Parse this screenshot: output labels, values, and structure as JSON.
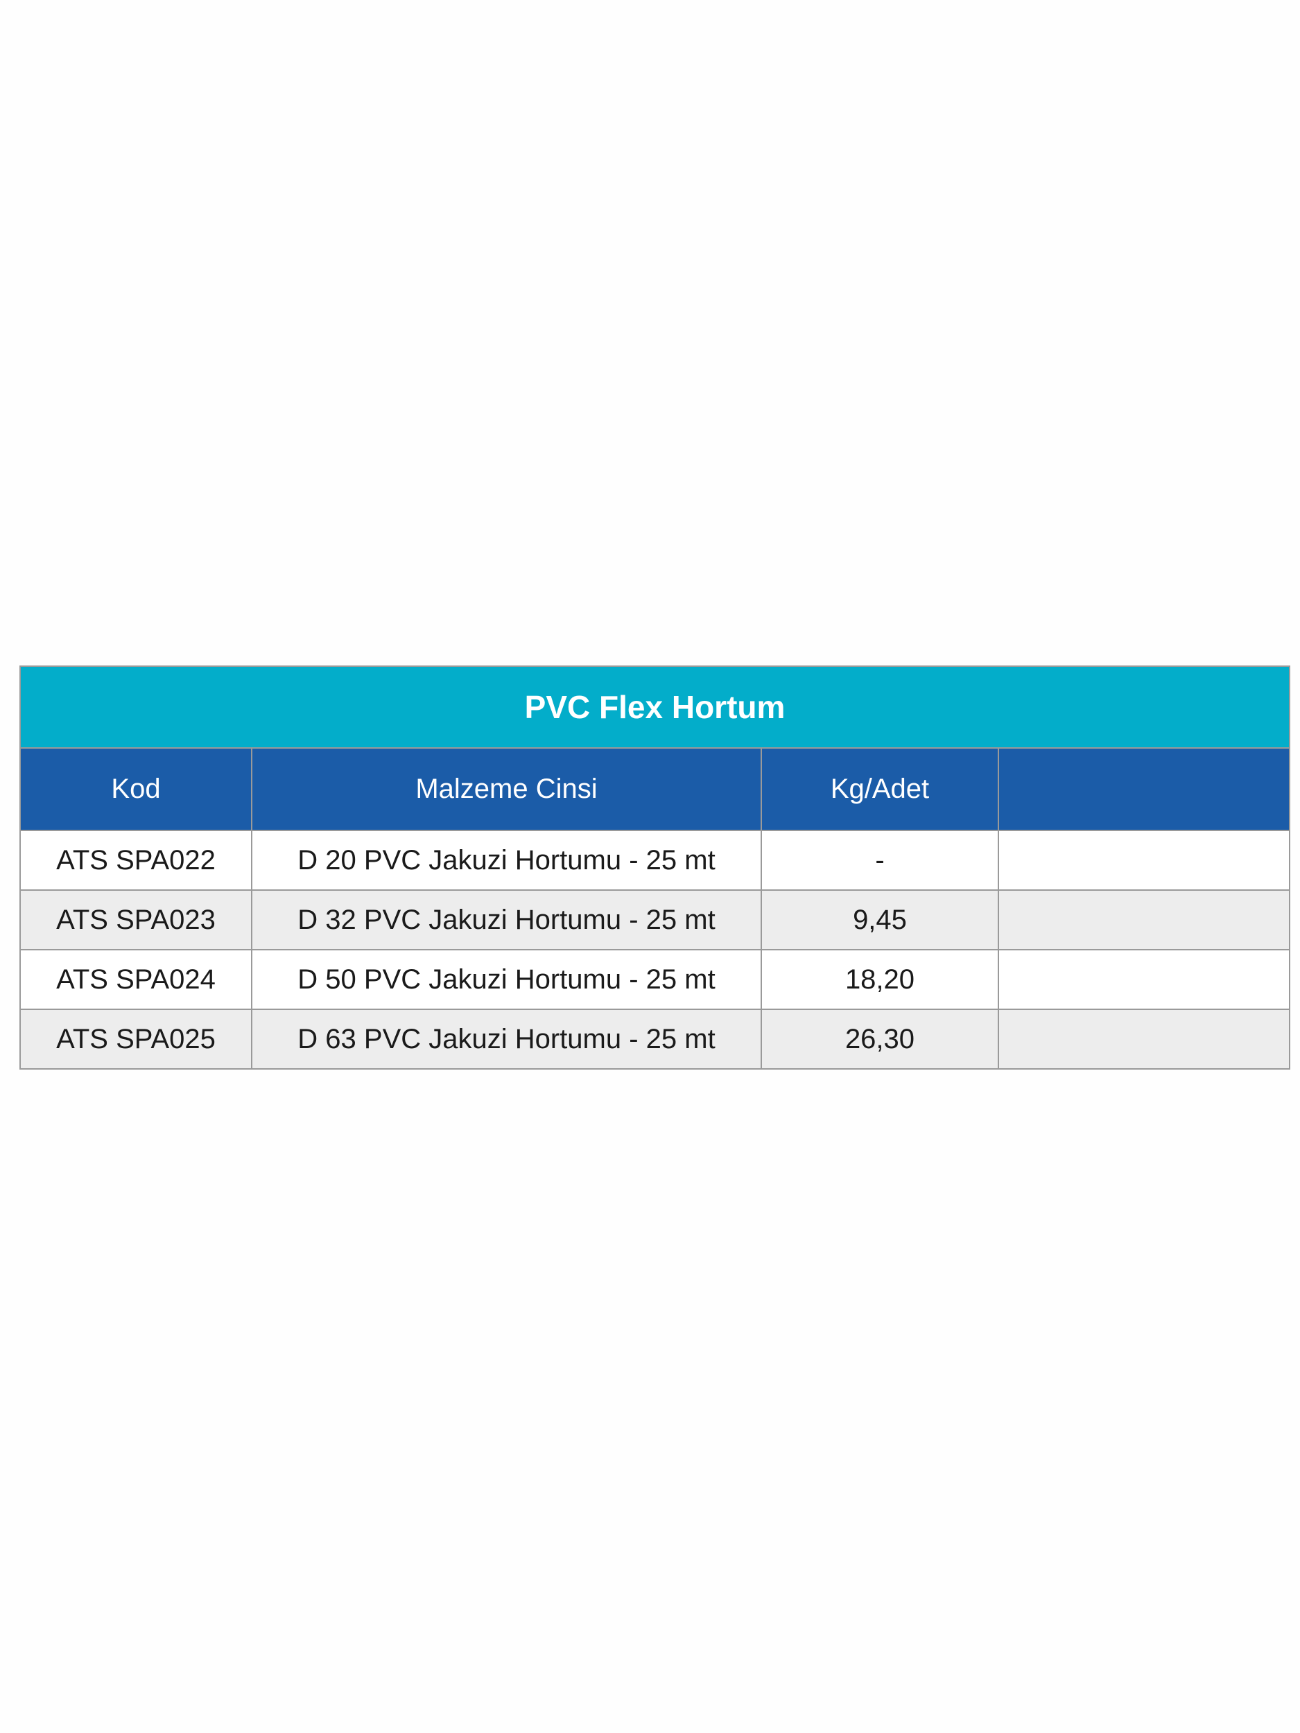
{
  "table": {
    "title": "PVC Flex Hortum",
    "columns": [
      "Kod",
      "Malzeme Cinsi",
      "Kg/Adet",
      ""
    ],
    "rows": [
      [
        "ATS SPA022",
        "D 20 PVC Jakuzi Hortumu - 25 mt",
        "-",
        ""
      ],
      [
        "ATS SPA023",
        "D 32 PVC Jakuzi Hortumu - 25 mt",
        "9,45",
        ""
      ],
      [
        "ATS SPA024",
        "D 50 PVC Jakuzi Hortumu - 25 mt",
        "18,20",
        ""
      ],
      [
        "ATS SPA025",
        "D 63 PVC Jakuzi Hortumu - 25 mt",
        "26,30",
        ""
      ]
    ],
    "colors": {
      "title_bg": "#03adca",
      "header_bg": "#1b5ca8",
      "alt_row_bg": "#ededed"
    }
  }
}
